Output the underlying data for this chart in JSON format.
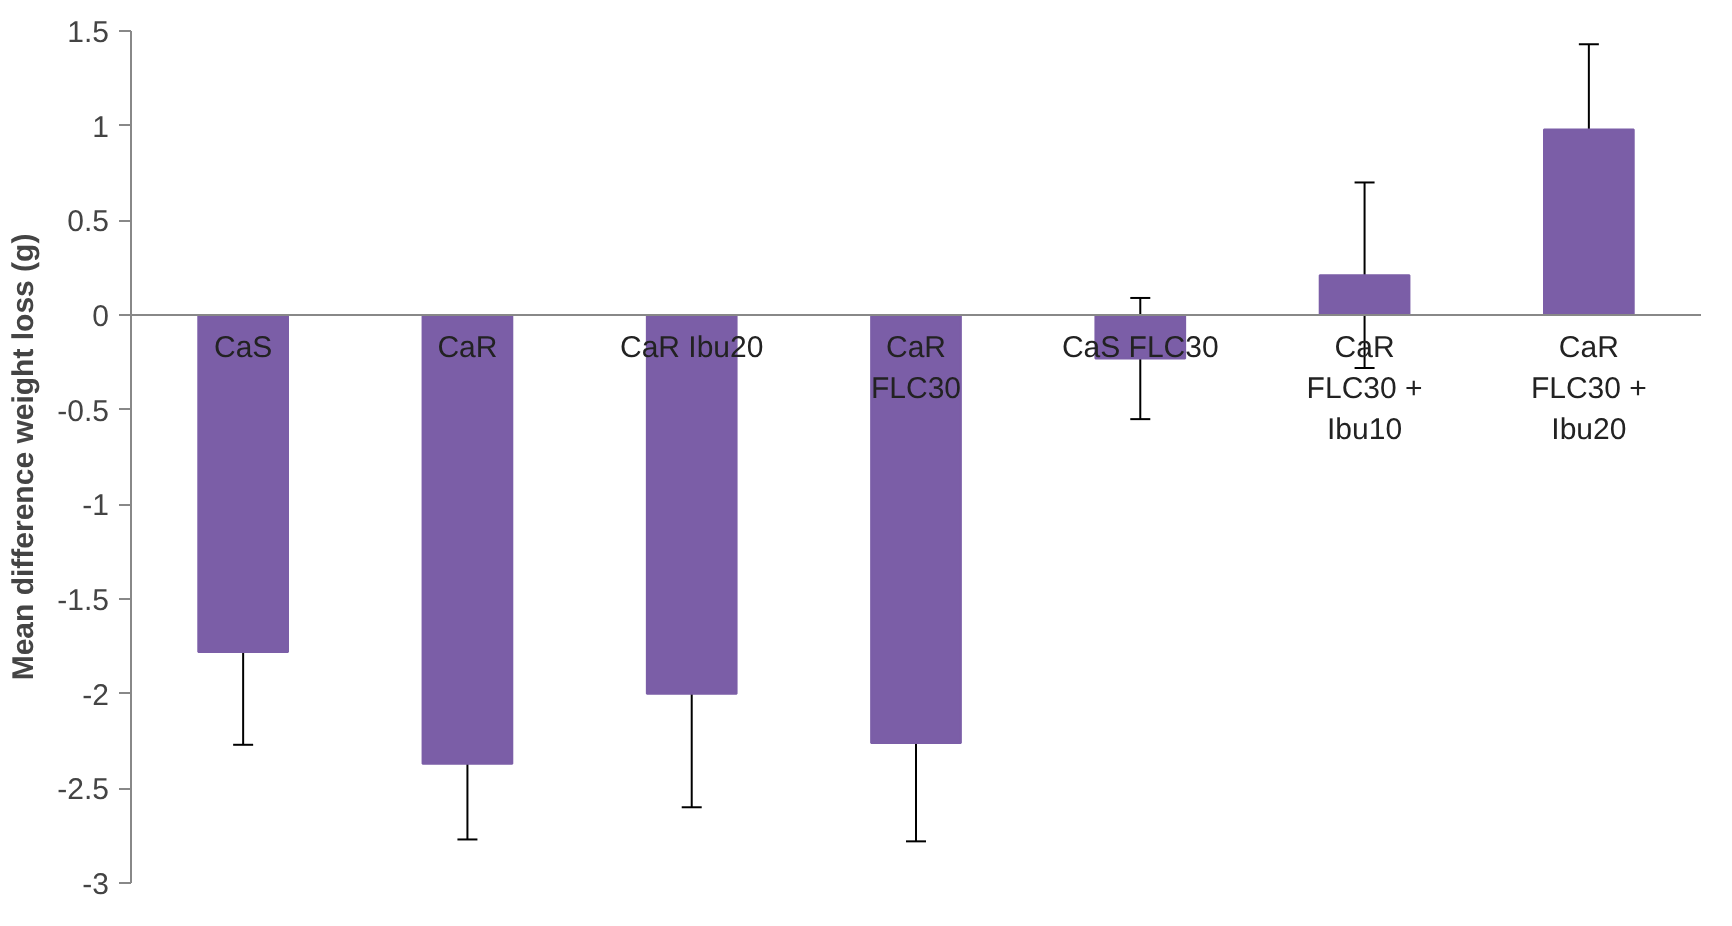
{
  "chart_data": {
    "type": "bar",
    "ylabel": "Mean difference weight loss (g)",
    "categories": [
      "CaS",
      "CaR",
      "CaR Ibu20",
      "CaR\nFLC30",
      "CaS FLC30",
      "CaR\nFLC30 +\nIbu10",
      "CaR\nFLC30 +\nIbu20"
    ],
    "values": [
      -1.78,
      -2.37,
      -2.0,
      -2.26,
      -0.23,
      0.21,
      0.98
    ],
    "errors": [
      0.49,
      0.4,
      0.6,
      0.52,
      0.32,
      0.49,
      0.45
    ],
    "color": "#7b5ea7",
    "ylim": [
      -3,
      1.5
    ],
    "yticks": [
      -3,
      -2.5,
      -2,
      -1.5,
      -1,
      -0.5,
      0,
      0.5,
      1,
      1.5
    ],
    "grid": false
  }
}
